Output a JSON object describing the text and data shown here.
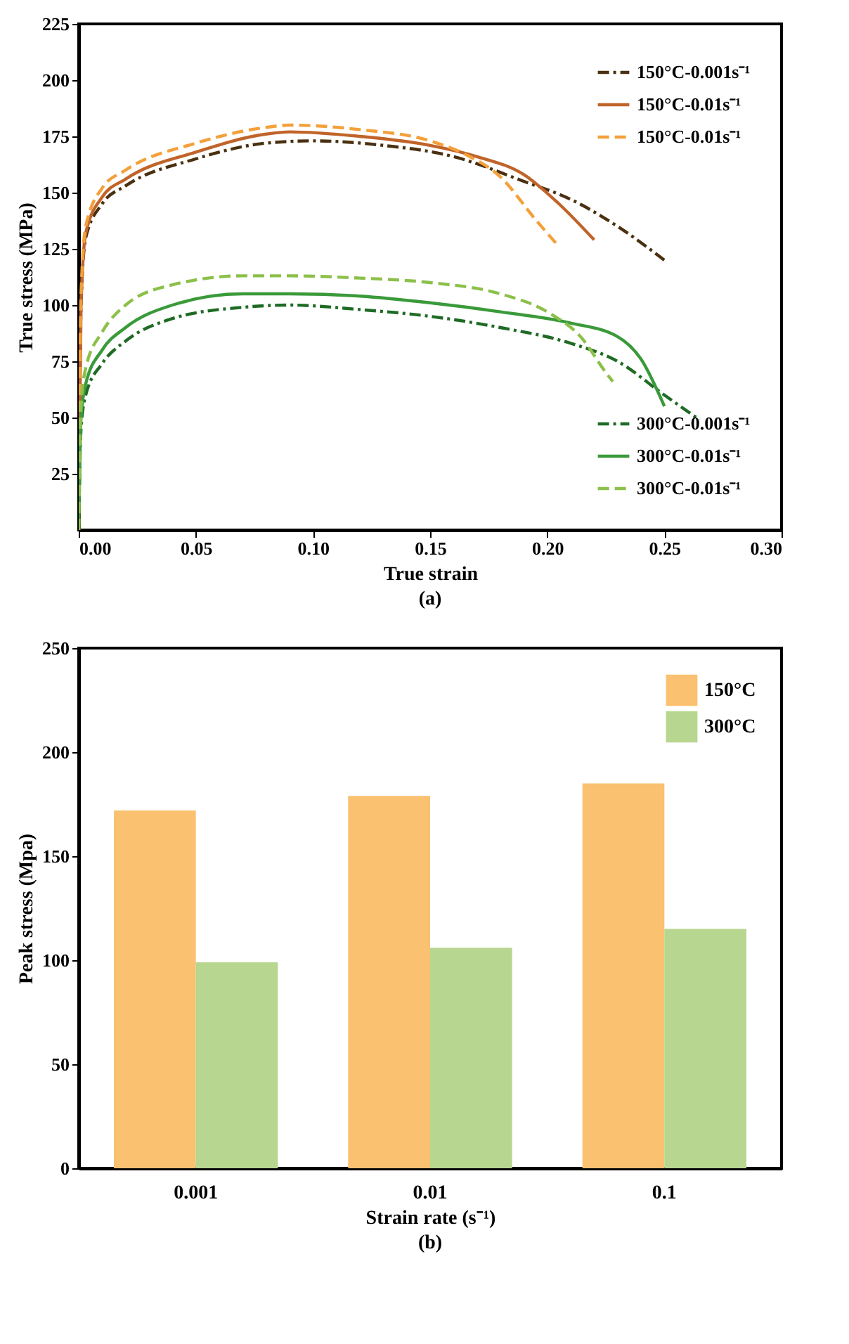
{
  "chart_data": [
    {
      "type": "line",
      "xlabel": "True strain",
      "ylabel": "True stress (MPa)",
      "annotations": [
        "(a)"
      ],
      "xlim": [
        0,
        0.3
      ],
      "ylim": [
        0,
        225
      ],
      "xticks": [
        {
          "value": 0,
          "label": "0.00"
        },
        {
          "value": 0.05,
          "label": "0.05"
        },
        {
          "value": 0.1,
          "label": "0.10"
        },
        {
          "value": 0.15,
          "label": "0.15"
        },
        {
          "value": 0.2,
          "label": "0.20"
        },
        {
          "value": 0.25,
          "label": "0.25"
        },
        {
          "value": 0.3,
          "label": "0.30"
        }
      ],
      "yticks": [
        25,
        50,
        75,
        100,
        125,
        150,
        175,
        200,
        225
      ],
      "grid": false,
      "legend": "right",
      "series": [
        {
          "name": "150°C-0.001s⁻¹",
          "color": "#4a3010",
          "line_style": "dashdot",
          "x": [
            0,
            0.001,
            0.003,
            0.01,
            0.02,
            0.05,
            0.08,
            0.1,
            0.13,
            0.16,
            0.19,
            0.21,
            0.23,
            0.25
          ],
          "values": [
            0,
            100,
            130,
            145,
            153,
            165,
            172,
            173,
            171,
            166,
            155,
            147,
            135,
            120
          ]
        },
        {
          "name": "150°C-0.01s⁻¹",
          "color": "#c0642a",
          "line_style": "solid",
          "x": [
            0,
            0.001,
            0.003,
            0.01,
            0.02,
            0.05,
            0.08,
            0.09,
            0.12,
            0.15,
            0.17,
            0.19,
            0.205,
            0.22
          ],
          "values": [
            0,
            100,
            132,
            148,
            156,
            168,
            176,
            177,
            175,
            171,
            166,
            158,
            145,
            129
          ]
        },
        {
          "name": "150°C-0.01s⁻¹",
          "color": "#f4a03a",
          "line_style": "dashed",
          "x": [
            0,
            0.001,
            0.003,
            0.01,
            0.02,
            0.05,
            0.08,
            0.09,
            0.12,
            0.15,
            0.165,
            0.18,
            0.195,
            0.205
          ],
          "values": [
            0,
            105,
            135,
            152,
            160,
            172,
            179,
            180,
            178,
            173,
            167,
            157,
            138,
            126
          ]
        },
        {
          "name": "300°C-0.001s⁻¹",
          "color": "#1f6b25",
          "line_style": "dashdot",
          "x": [
            0,
            0.001,
            0.003,
            0.01,
            0.02,
            0.04,
            0.07,
            0.09,
            0.12,
            0.15,
            0.18,
            0.21,
            0.23,
            0.25,
            0.265
          ],
          "values": [
            0,
            45,
            60,
            74,
            84,
            94,
            99,
            100,
            98,
            95,
            90,
            83,
            75,
            60,
            49
          ]
        },
        {
          "name": "300°C-0.01s⁻¹",
          "color": "#3a9a3a",
          "line_style": "solid",
          "x": [
            0,
            0.001,
            0.003,
            0.01,
            0.02,
            0.04,
            0.07,
            0.09,
            0.12,
            0.15,
            0.18,
            0.21,
            0.23,
            0.24,
            0.25
          ],
          "values": [
            0,
            50,
            65,
            80,
            90,
            100,
            105,
            105,
            104,
            101,
            97,
            92,
            86,
            76,
            55
          ]
        },
        {
          "name": "300°C-0.01s⁻¹",
          "color": "#8cc04a",
          "line_style": "dashed",
          "x": [
            0,
            0.001,
            0.003,
            0.01,
            0.02,
            0.04,
            0.07,
            0.09,
            0.12,
            0.15,
            0.18,
            0.2,
            0.215,
            0.225,
            0.228
          ],
          "values": [
            0,
            55,
            72,
            88,
            100,
            109,
            113,
            113,
            112,
            110,
            105,
            97,
            85,
            70,
            66
          ]
        }
      ]
    },
    {
      "type": "bar",
      "xlabel": "Strain rate (s⁻¹)",
      "ylabel": "Peak stress (Mpa)",
      "annotations": [
        "(b)"
      ],
      "categories": [
        "0.001",
        "0.01",
        "0.1"
      ],
      "ylim": [
        0,
        250
      ],
      "yticks": [
        0,
        50,
        100,
        150,
        200,
        250
      ],
      "grid": false,
      "legend": "top right",
      "series": [
        {
          "name": "150°C",
          "color": "#f9c170",
          "values": [
            172,
            179,
            185
          ]
        },
        {
          "name": "300°C",
          "color": "#b7d68f",
          "values": [
            99,
            106,
            115
          ]
        }
      ]
    }
  ]
}
